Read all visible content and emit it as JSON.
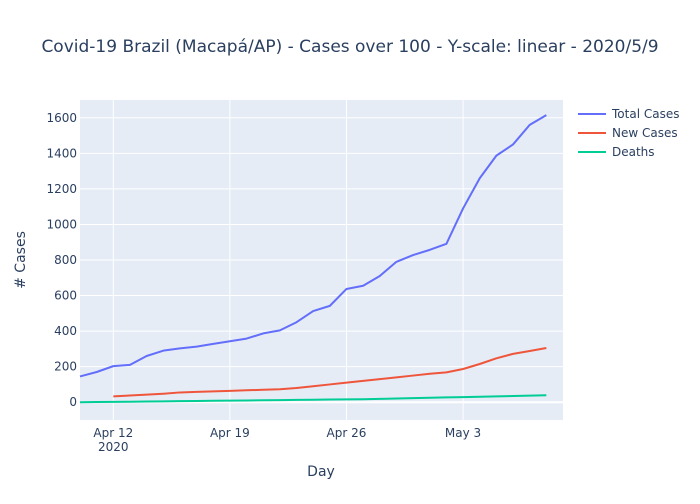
{
  "chart_data": {
    "type": "line",
    "title": "Covid-19 Brazil (Macapá/AP) - Cases over 100 - Y-scale: linear - 2020/5/9",
    "xlabel": "Day",
    "ylabel": "# Cases",
    "x_dates": [
      "2020-04-10",
      "2020-04-11",
      "2020-04-12",
      "2020-04-13",
      "2020-04-14",
      "2020-04-15",
      "2020-04-16",
      "2020-04-17",
      "2020-04-18",
      "2020-04-19",
      "2020-04-20",
      "2020-04-21",
      "2020-04-22",
      "2020-04-23",
      "2020-04-24",
      "2020-04-25",
      "2020-04-26",
      "2020-04-27",
      "2020-04-28",
      "2020-04-29",
      "2020-04-30",
      "2020-05-01",
      "2020-05-02",
      "2020-05-03",
      "2020-05-04",
      "2020-05-05",
      "2020-05-06",
      "2020-05-07",
      "2020-05-08",
      "2020-05-09"
    ],
    "x_ticks": [
      {
        "date": "2020-04-12",
        "label": "Apr 12",
        "sublabel": "2020"
      },
      {
        "date": "2020-04-19",
        "label": "Apr 19",
        "sublabel": ""
      },
      {
        "date": "2020-04-26",
        "label": "Apr 26",
        "sublabel": ""
      },
      {
        "date": "2020-05-03",
        "label": "May 3",
        "sublabel": ""
      }
    ],
    "ylim": [
      -100,
      1700
    ],
    "y_ticks": [
      0,
      200,
      400,
      600,
      800,
      1000,
      1200,
      1400,
      1600
    ],
    "grid": true,
    "legend_position": "top-right",
    "plot_background": "#e5ecf6",
    "series": [
      {
        "name": "Total Cases",
        "color": "#636efa",
        "values": [
          145,
          170,
          203,
          210,
          260,
          290,
          303,
          313,
          328,
          343,
          358,
          387,
          404,
          450,
          513,
          542,
          637,
          655,
          710,
          790,
          828,
          857,
          891,
          1090,
          1260,
          1387,
          1450,
          1560,
          1615,
          null
        ]
      },
      {
        "name": "New Cases",
        "color": "#ef553b",
        "values": [
          null,
          null,
          33,
          38,
          43,
          48,
          55,
          58,
          61,
          64,
          67,
          70,
          73,
          80,
          90,
          100,
          110,
          120,
          130,
          140,
          150,
          160,
          168,
          187,
          215,
          247,
          272,
          288,
          305,
          null
        ]
      },
      {
        "name": "Deaths",
        "color": "#00cc96",
        "values": [
          0,
          1,
          2,
          3,
          4,
          5,
          6,
          7,
          8,
          9,
          10,
          11,
          12,
          13,
          14,
          15,
          16,
          17,
          19,
          21,
          23,
          25,
          27,
          29,
          31,
          33,
          35,
          37,
          39,
          null
        ]
      }
    ]
  }
}
